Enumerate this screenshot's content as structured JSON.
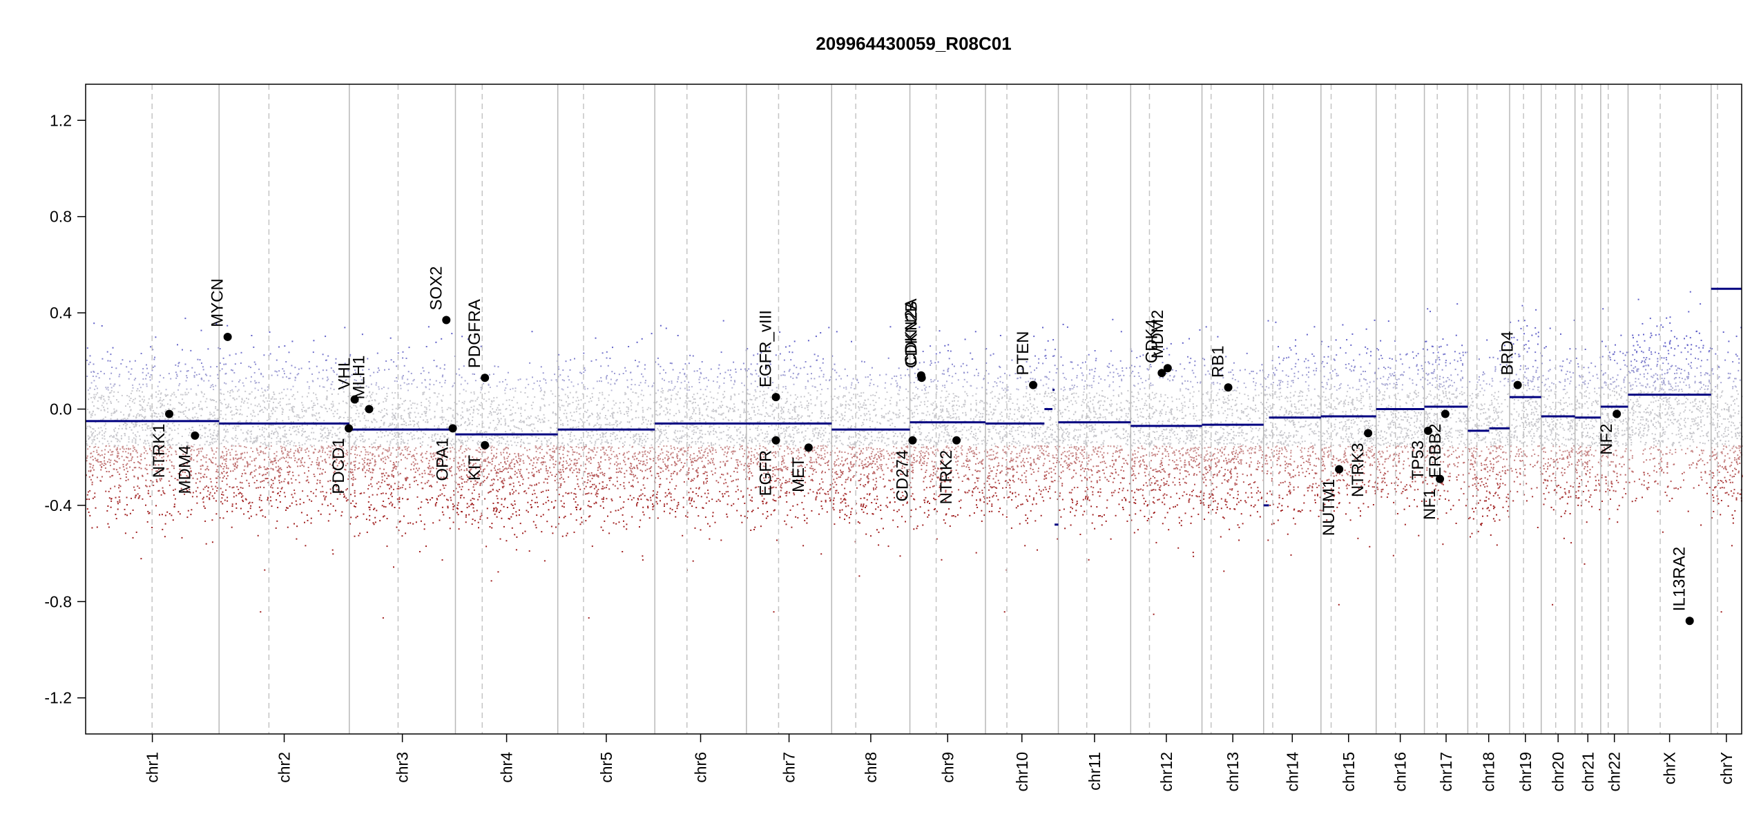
{
  "chart_data": {
    "type": "scatter",
    "title": "209964430059_R08C01",
    "xlabel": "",
    "ylabel": "",
    "ylim": [
      -1.35,
      1.35
    ],
    "yticks": [
      -1.2,
      -0.8,
      -0.4,
      0.0,
      0.4,
      0.8,
      1.2
    ],
    "ytick_labels": [
      "-1.2",
      "-0.8",
      "-0.4",
      "0.0",
      "0.4",
      "0.8",
      "1.2"
    ],
    "grid": false,
    "chromosomes": [
      {
        "name": "chr1",
        "length": 249,
        "centromere": 124
      },
      {
        "name": "chr2",
        "length": 243,
        "centromere": 93
      },
      {
        "name": "chr3",
        "length": 198,
        "centromere": 91
      },
      {
        "name": "chr4",
        "length": 191,
        "centromere": 50
      },
      {
        "name": "chr5",
        "length": 181,
        "centromere": 48
      },
      {
        "name": "chr6",
        "length": 171,
        "centromere": 60
      },
      {
        "name": "chr7",
        "length": 159,
        "centromere": 60
      },
      {
        "name": "chr8",
        "length": 146,
        "centromere": 45
      },
      {
        "name": "chr9",
        "length": 141,
        "centromere": 49
      },
      {
        "name": "chr10",
        "length": 136,
        "centromere": 40
      },
      {
        "name": "chr11",
        "length": 135,
        "centromere": 53
      },
      {
        "name": "chr12",
        "length": 133,
        "centromere": 35
      },
      {
        "name": "chr13",
        "length": 115,
        "centromere": 17
      },
      {
        "name": "chr14",
        "length": 107,
        "centromere": 17
      },
      {
        "name": "chr15",
        "length": 103,
        "centromere": 19
      },
      {
        "name": "chr16",
        "length": 90,
        "centromere": 36
      },
      {
        "name": "chr17",
        "length": 81,
        "centromere": 24
      },
      {
        "name": "chr18",
        "length": 78,
        "centromere": 17
      },
      {
        "name": "chr19",
        "length": 59,
        "centromere": 26
      },
      {
        "name": "chr20",
        "length": 63,
        "centromere": 27
      },
      {
        "name": "chr21",
        "length": 48,
        "centromere": 13
      },
      {
        "name": "chr22",
        "length": 51,
        "centromere": 14
      },
      {
        "name": "chrX",
        "length": 155,
        "centromere": 60
      },
      {
        "name": "chrY",
        "length": 57,
        "centromere": 12
      }
    ],
    "segments": [
      {
        "chr": "chr1",
        "start": 0,
        "end": 249,
        "value": -0.05
      },
      {
        "chr": "chr2",
        "start": 0,
        "end": 243,
        "value": -0.06
      },
      {
        "chr": "chr3",
        "start": 0,
        "end": 198,
        "value": -0.085
      },
      {
        "chr": "chr4",
        "start": 0,
        "end": 191,
        "value": -0.105
      },
      {
        "chr": "chr5",
        "start": 0,
        "end": 181,
        "value": -0.085
      },
      {
        "chr": "chr6",
        "start": 0,
        "end": 171,
        "value": -0.06
      },
      {
        "chr": "chr7",
        "start": 0,
        "end": 159,
        "value": -0.06
      },
      {
        "chr": "chr8",
        "start": 0,
        "end": 146,
        "value": -0.085
      },
      {
        "chr": "chr9",
        "start": 0,
        "end": 141,
        "value": -0.055
      },
      {
        "chr": "chr10",
        "start": 0,
        "end": 110,
        "value": -0.06
      },
      {
        "chr": "chr10",
        "start": 110,
        "end": 125,
        "value": 0.0
      },
      {
        "chr": "chr10",
        "start": 125,
        "end": 129,
        "value": 0.08
      },
      {
        "chr": "chr10",
        "start": 129,
        "end": 136,
        "value": -0.48
      },
      {
        "chr": "chr11",
        "start": 0,
        "end": 135,
        "value": -0.055
      },
      {
        "chr": "chr12",
        "start": 0,
        "end": 133,
        "value": -0.07
      },
      {
        "chr": "chr13",
        "start": 0,
        "end": 115,
        "value": -0.065
      },
      {
        "chr": "chr14",
        "start": 0,
        "end": 10,
        "value": -0.4
      },
      {
        "chr": "chr14",
        "start": 10,
        "end": 107,
        "value": -0.035
      },
      {
        "chr": "chr15",
        "start": 0,
        "end": 103,
        "value": -0.03
      },
      {
        "chr": "chr16",
        "start": 0,
        "end": 90,
        "value": 0.0
      },
      {
        "chr": "chr17",
        "start": 0,
        "end": 81,
        "value": 0.01
      },
      {
        "chr": "chr18",
        "start": 0,
        "end": 40,
        "value": -0.09
      },
      {
        "chr": "chr18",
        "start": 40,
        "end": 78,
        "value": -0.08
      },
      {
        "chr": "chr19",
        "start": 0,
        "end": 59,
        "value": 0.05
      },
      {
        "chr": "chr20",
        "start": 0,
        "end": 63,
        "value": -0.03
      },
      {
        "chr": "chr21",
        "start": 0,
        "end": 48,
        "value": -0.035
      },
      {
        "chr": "chr22",
        "start": 0,
        "end": 51,
        "value": 0.01
      },
      {
        "chr": "chrX",
        "start": 0,
        "end": 155,
        "value": 0.06
      },
      {
        "chr": "chrY",
        "start": 0,
        "end": 57,
        "value": 0.5
      }
    ],
    "genes": [
      {
        "name": "NTRK1",
        "chr": "chr1",
        "pos": 156,
        "value": -0.02,
        "label_side": "below"
      },
      {
        "name": "MDM4",
        "chr": "chr1",
        "pos": 204,
        "value": -0.11,
        "label_side": "below"
      },
      {
        "name": "MYCN",
        "chr": "chr2",
        "pos": 16,
        "value": 0.3,
        "label_side": "above"
      },
      {
        "name": "PDCD1",
        "chr": "chr2",
        "pos": 242,
        "value": -0.08,
        "label_side": "below"
      },
      {
        "name": "VHL",
        "chr": "chr3",
        "pos": 10,
        "value": 0.04,
        "label_side": "above"
      },
      {
        "name": "MLH1",
        "chr": "chr3",
        "pos": 37,
        "value": 0.0,
        "label_side": "above"
      },
      {
        "name": "SOX2",
        "chr": "chr3",
        "pos": 181,
        "value": 0.37,
        "label_side": "above"
      },
      {
        "name": "OPA1",
        "chr": "chr3",
        "pos": 193,
        "value": -0.08,
        "label_side": "below"
      },
      {
        "name": "PDGFRA",
        "chr": "chr4",
        "pos": 55,
        "value": 0.13,
        "label_side": "above"
      },
      {
        "name": "KIT",
        "chr": "chr4",
        "pos": 55,
        "value": -0.15,
        "label_side": "below"
      },
      {
        "name": "EGFR_vIII",
        "chr": "chr7",
        "pos": 55,
        "value": 0.05,
        "label_side": "above"
      },
      {
        "name": "EGFR",
        "chr": "chr7",
        "pos": 55,
        "value": -0.13,
        "label_side": "below"
      },
      {
        "name": "MET",
        "chr": "chr7",
        "pos": 116,
        "value": -0.16,
        "label_side": "below"
      },
      {
        "name": "CD274",
        "chr": "chr9",
        "pos": 5,
        "value": -0.13,
        "label_side": "below"
      },
      {
        "name": "CDKN2A",
        "chr": "chr9",
        "pos": 21,
        "value": 0.14,
        "label_side": "above"
      },
      {
        "name": "CDKN2B",
        "chr": "chr9",
        "pos": 22,
        "value": 0.13,
        "label_side": "above"
      },
      {
        "name": "NTRK2",
        "chr": "chr9",
        "pos": 87,
        "value": -0.13,
        "label_side": "below"
      },
      {
        "name": "PTEN",
        "chr": "chr10",
        "pos": 89,
        "value": 0.1,
        "label_side": "above"
      },
      {
        "name": "CDK4",
        "chr": "chr12",
        "pos": 58,
        "value": 0.15,
        "label_side": "above"
      },
      {
        "name": "MDM2",
        "chr": "chr12",
        "pos": 69,
        "value": 0.17,
        "label_side": "above"
      },
      {
        "name": "RB1",
        "chr": "chr13",
        "pos": 49,
        "value": 0.09,
        "label_side": "above"
      },
      {
        "name": "NUTM1",
        "chr": "chr15",
        "pos": 34,
        "value": -0.25,
        "label_side": "below"
      },
      {
        "name": "NTRK3",
        "chr": "chr15",
        "pos": 88,
        "value": -0.1,
        "label_side": "below"
      },
      {
        "name": "TP53",
        "chr": "chr17",
        "pos": 7,
        "value": -0.09,
        "label_side": "below"
      },
      {
        "name": "NF1",
        "chr": "chr17",
        "pos": 29,
        "value": -0.29,
        "label_side": "below"
      },
      {
        "name": "ERBB2",
        "chr": "chr17",
        "pos": 39,
        "value": -0.02,
        "label_side": "below"
      },
      {
        "name": "BRD4",
        "chr": "chr19",
        "pos": 15,
        "value": 0.1,
        "label_side": "above"
      },
      {
        "name": "NF2",
        "chr": "chr22",
        "pos": 30,
        "value": -0.02,
        "label_side": "below"
      },
      {
        "name": "IL13RA2",
        "chr": "chrX",
        "pos": 115,
        "value": -0.88,
        "label_side": "above"
      }
    ]
  }
}
